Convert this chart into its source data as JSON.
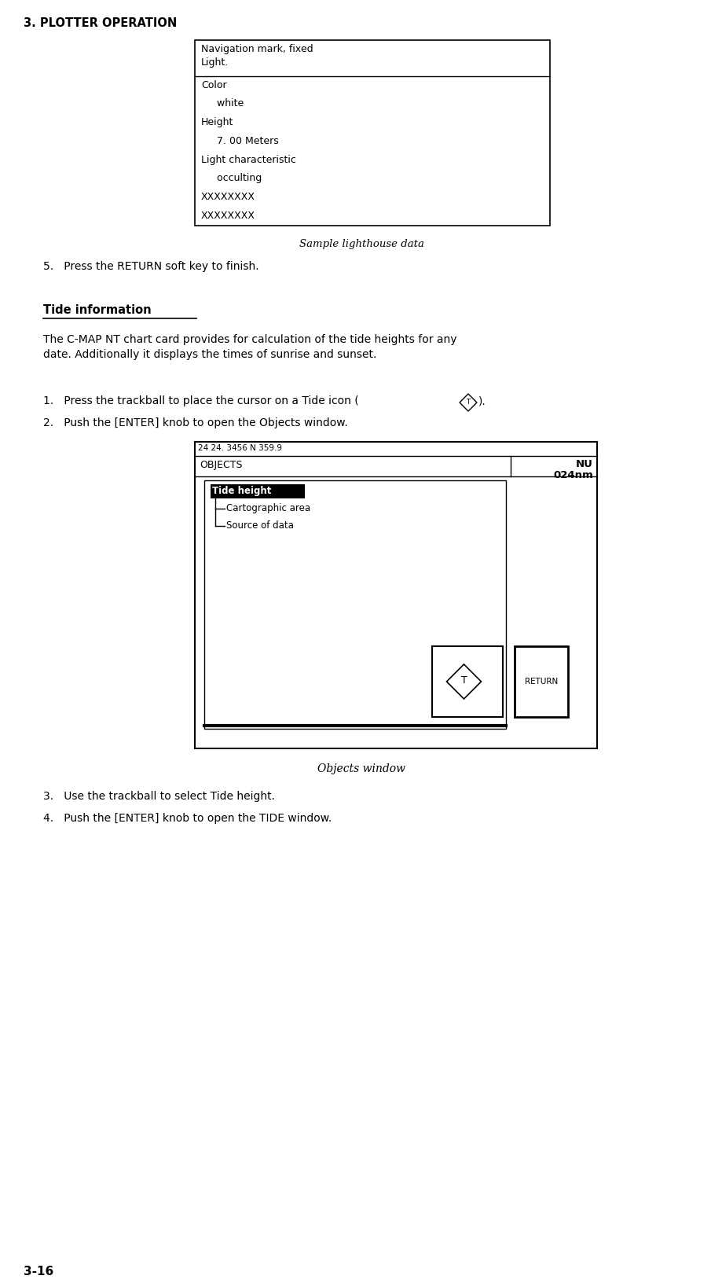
{
  "page_title": "3. PLOTTER OPERATION",
  "page_number": "3-16",
  "bg_color": "#ffffff",
  "table1": {
    "header": "Navigation mark, fixed\nLight.",
    "rows": [
      "Color",
      "     white",
      "Height",
      "     7. 00 Meters",
      "Light characteristic",
      "     occulting",
      "XXXXXXXX",
      "XXXXXXXX"
    ]
  },
  "caption1": "Sample lighthouse data",
  "step5": "5.   Press the RETURN soft key to finish.",
  "section_title": "Tide information",
  "para1": "The C-MAP NT chart card provides for calculation of the tide heights for any\ndate. Additionally it displays the times of sunrise and sunset.",
  "step1_pre": "1.   Press the trackball to place the cursor on a Tide icon (",
  "step1_post": ").",
  "step2": "2.   Push the [ENTER] knob to open the Objects window.",
  "caption2": "Objects window",
  "step3": "3.   Use the trackball to select Tide height.",
  "step4": "4.   Push the [ENTER] knob to open the TIDE window.",
  "objects_window": {
    "topbar_text": "24 24. 3456 N 359.9",
    "header_left": "OBJECTS",
    "header_right1": "NU",
    "header_right2": "024nm",
    "items": [
      "Tide height",
      "Cartographic area",
      "Source of data"
    ],
    "selected_item": "Tide height"
  }
}
